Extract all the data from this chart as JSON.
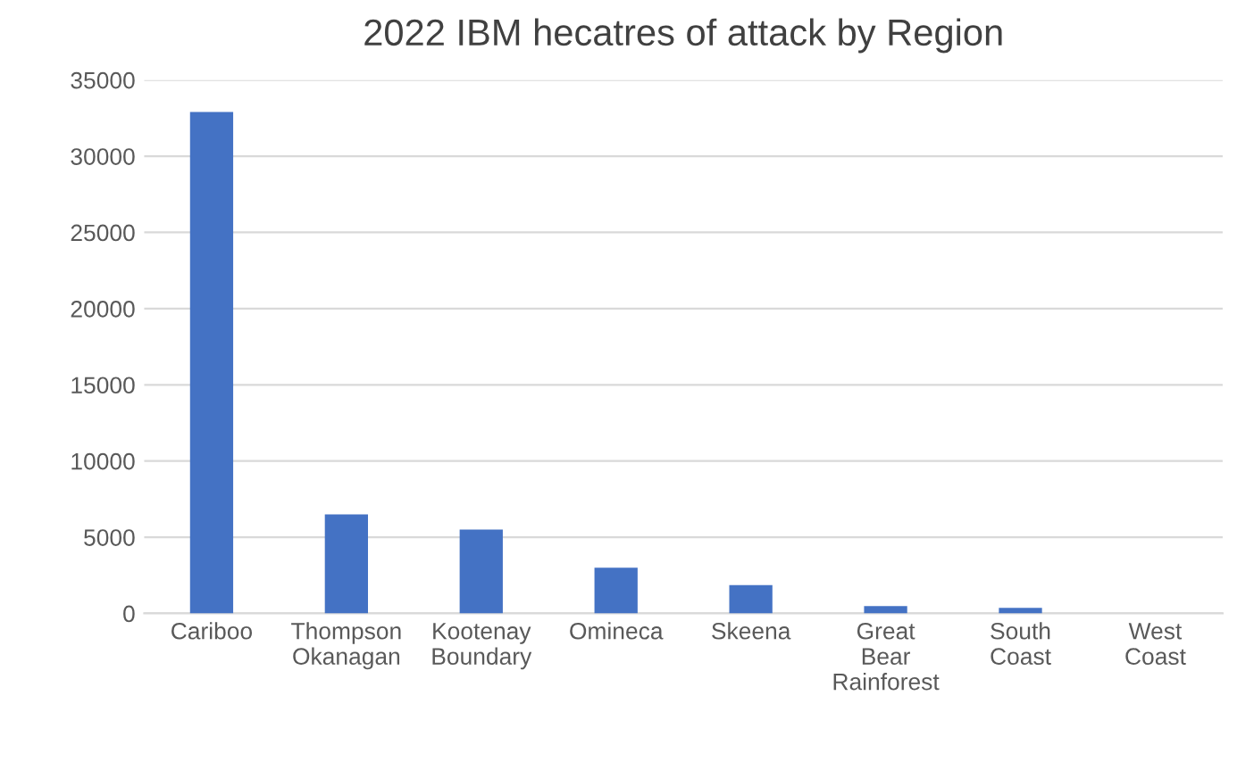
{
  "chart_data": {
    "type": "bar",
    "title": "2022 IBM hecatres of attack by Region",
    "categories": [
      "Cariboo",
      "Thompson\nOkanagan",
      "Kootenay\nBoundary",
      "Omineca",
      "Skeena",
      "Great\nBear\nRainforest",
      "South\nCoast",
      "West\nCoast"
    ],
    "values": [
      32900,
      6500,
      5500,
      3000,
      1850,
      480,
      360,
      0
    ],
    "color": "#4472c4",
    "ylim": [
      0,
      35000
    ],
    "yticks": [
      0,
      5000,
      10000,
      15000,
      20000,
      25000,
      30000,
      35000
    ],
    "grid": "y"
  }
}
